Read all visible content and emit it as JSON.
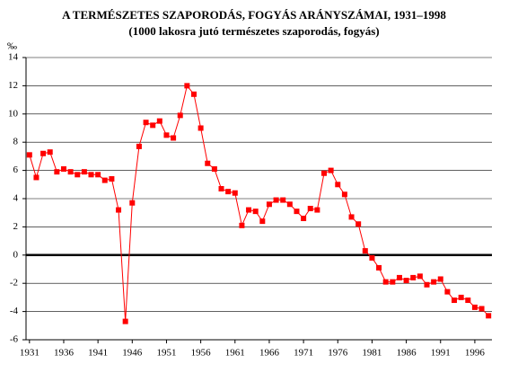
{
  "chart_data": {
    "type": "line",
    "title": "A TERMÉSZETES SZAPORODÁS, FOGYÁS ARÁNYSZÁMAI, 1931–1998",
    "subtitle": "(1000 lakosra jutó természetes szaporodás, fogyás)",
    "y_label": "‰",
    "x": [
      1931,
      1932,
      1933,
      1934,
      1935,
      1936,
      1937,
      1938,
      1939,
      1940,
      1941,
      1942,
      1943,
      1944,
      1945,
      1946,
      1947,
      1948,
      1949,
      1950,
      1951,
      1952,
      1953,
      1954,
      1955,
      1956,
      1957,
      1958,
      1959,
      1960,
      1961,
      1962,
      1963,
      1964,
      1965,
      1966,
      1967,
      1968,
      1969,
      1970,
      1971,
      1972,
      1973,
      1974,
      1975,
      1976,
      1977,
      1978,
      1979,
      1980,
      1981,
      1982,
      1983,
      1984,
      1985,
      1986,
      1987,
      1988,
      1989,
      1990,
      1991,
      1992,
      1993,
      1994,
      1995,
      1996,
      1997,
      1998
    ],
    "series": [
      {
        "color": "#ff0000",
        "values": [
          7.1,
          5.5,
          7.2,
          7.3,
          5.9,
          6.1,
          5.9,
          5.7,
          5.9,
          5.7,
          5.7,
          5.3,
          5.4,
          3.2,
          -4.7,
          3.7,
          7.7,
          9.4,
          9.2,
          9.5,
          8.5,
          8.3,
          9.9,
          12.0,
          11.4,
          9.0,
          6.5,
          6.1,
          4.7,
          4.5,
          4.4,
          2.1,
          3.2,
          3.1,
          2.4,
          3.6,
          3.9,
          3.9,
          3.6,
          3.1,
          2.6,
          3.3,
          3.2,
          5.8,
          6.0,
          5.0,
          4.3,
          2.7,
          2.2,
          0.3,
          -0.2,
          -0.9,
          -1.9,
          -1.9,
          -1.6,
          -1.8,
          -1.6,
          -1.5,
          -2.1,
          -1.9,
          -1.7,
          -2.6,
          -3.2,
          -3.0,
          -3.2,
          -3.7,
          -3.8,
          -4.3
        ]
      }
    ],
    "xlim": [
      1930.5,
      1998.5
    ],
    "xticks": [
      1931,
      1936,
      1941,
      1946,
      1951,
      1956,
      1961,
      1966,
      1971,
      1976,
      1981,
      1986,
      1991,
      1996
    ],
    "ylim": [
      -6,
      14
    ],
    "yticks": [
      -6,
      -4,
      -2,
      0,
      2,
      4,
      6,
      8,
      10,
      12,
      14
    ],
    "grid": true
  }
}
